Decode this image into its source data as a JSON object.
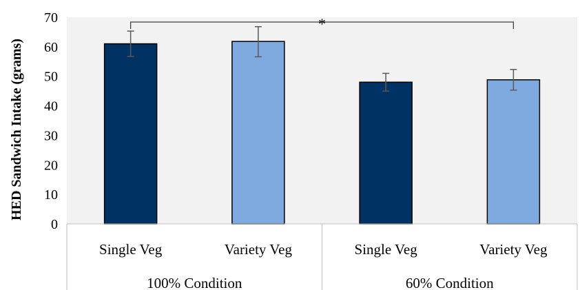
{
  "chart_data": {
    "type": "bar",
    "ylabel": "HED Sandwich Intake (grams)",
    "ylim": [
      0,
      70
    ],
    "yticks": [
      "0",
      "10",
      "20",
      "30",
      "40",
      "50",
      "60",
      "70"
    ],
    "groups": [
      {
        "label": "100% Condition",
        "bars": [
          {
            "label": "Single Veg",
            "value": 61,
            "err_low": 4.3,
            "err_high": 4.3,
            "color": "#003263"
          },
          {
            "label": "Variety Veg",
            "value": 61.8,
            "err_low": 5.2,
            "err_high": 5.0,
            "color": "#7faadf"
          }
        ]
      },
      {
        "label": "60% Condition",
        "bars": [
          {
            "label": "Single Veg",
            "value": 48,
            "err_low": 3.0,
            "err_high": 3.0,
            "color": "#003263"
          },
          {
            "label": "Variety Veg",
            "value": 48.8,
            "err_low": 3.5,
            "err_high": 3.5,
            "color": "#7faadf"
          }
        ]
      }
    ],
    "significance": {
      "label": "*",
      "from_bar": 0,
      "to_bar": 3
    },
    "plot_background": "#f2f2f2",
    "grid": false
  }
}
